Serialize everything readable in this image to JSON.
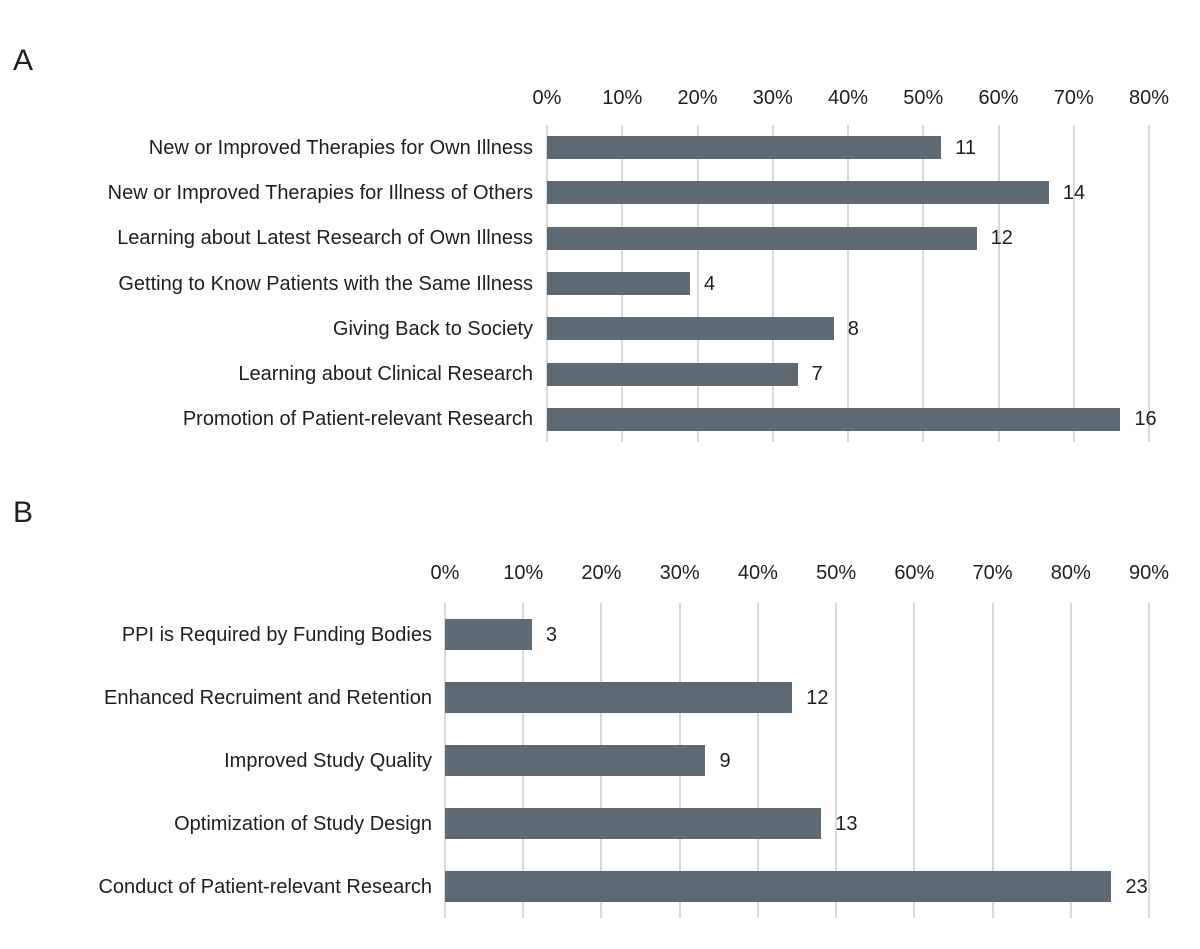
{
  "figure_title": "",
  "colors": {
    "bar": "#5d6a74",
    "gridline": "#d9d9d9",
    "text": "#1f1f1f",
    "background": "#ffffff"
  },
  "chart_data": [
    {
      "panel": "A",
      "type": "bar",
      "orientation": "horizontal",
      "title": "",
      "xlabel": "",
      "ylabel": "",
      "axis_position": "top",
      "grid": true,
      "legend": false,
      "categories": [
        "New or Improved Therapies for Own Illness",
        "New or Improved Therapies for Illness of Others",
        "Learning about Latest Research of Own Illness",
        "Getting to Know Patients with the Same Illness",
        "Giving Back to Society",
        "Learning about Clinical Research",
        "Promotion of Patient-relevant Research"
      ],
      "counts": [
        11,
        14,
        12,
        4,
        8,
        7,
        16
      ],
      "data_labels": [
        "11",
        "14",
        "12",
        "4",
        "8",
        "7",
        "16"
      ],
      "percent_values": [
        52.4,
        66.7,
        57.1,
        19.0,
        38.1,
        33.3,
        76.2
      ],
      "xlim": [
        0,
        80
      ],
      "tick_step_percent": 10,
      "tick_labels": [
        "0%",
        "10%",
        "20%",
        "30%",
        "40%",
        "50%",
        "60%",
        "70%",
        "80%"
      ]
    },
    {
      "panel": "B",
      "type": "bar",
      "orientation": "horizontal",
      "title": "",
      "xlabel": "",
      "ylabel": "",
      "axis_position": "top",
      "grid": true,
      "legend": false,
      "categories": [
        "PPI is Required by Funding Bodies",
        "Enhanced Recruiment and Retention",
        "Improved Study Quality",
        "Optimization of Study Design",
        "Conduct of Patient-relevant Research"
      ],
      "counts": [
        3,
        12,
        9,
        13,
        23
      ],
      "data_labels": [
        "3",
        "12",
        "9",
        "13",
        "23"
      ],
      "percent_values": [
        11.1,
        44.4,
        33.3,
        48.1,
        85.2
      ],
      "xlim": [
        0,
        90
      ],
      "tick_step_percent": 10,
      "tick_labels": [
        "0%",
        "10%",
        "20%",
        "30%",
        "40%",
        "50%",
        "60%",
        "70%",
        "80%",
        "90%"
      ]
    }
  ]
}
